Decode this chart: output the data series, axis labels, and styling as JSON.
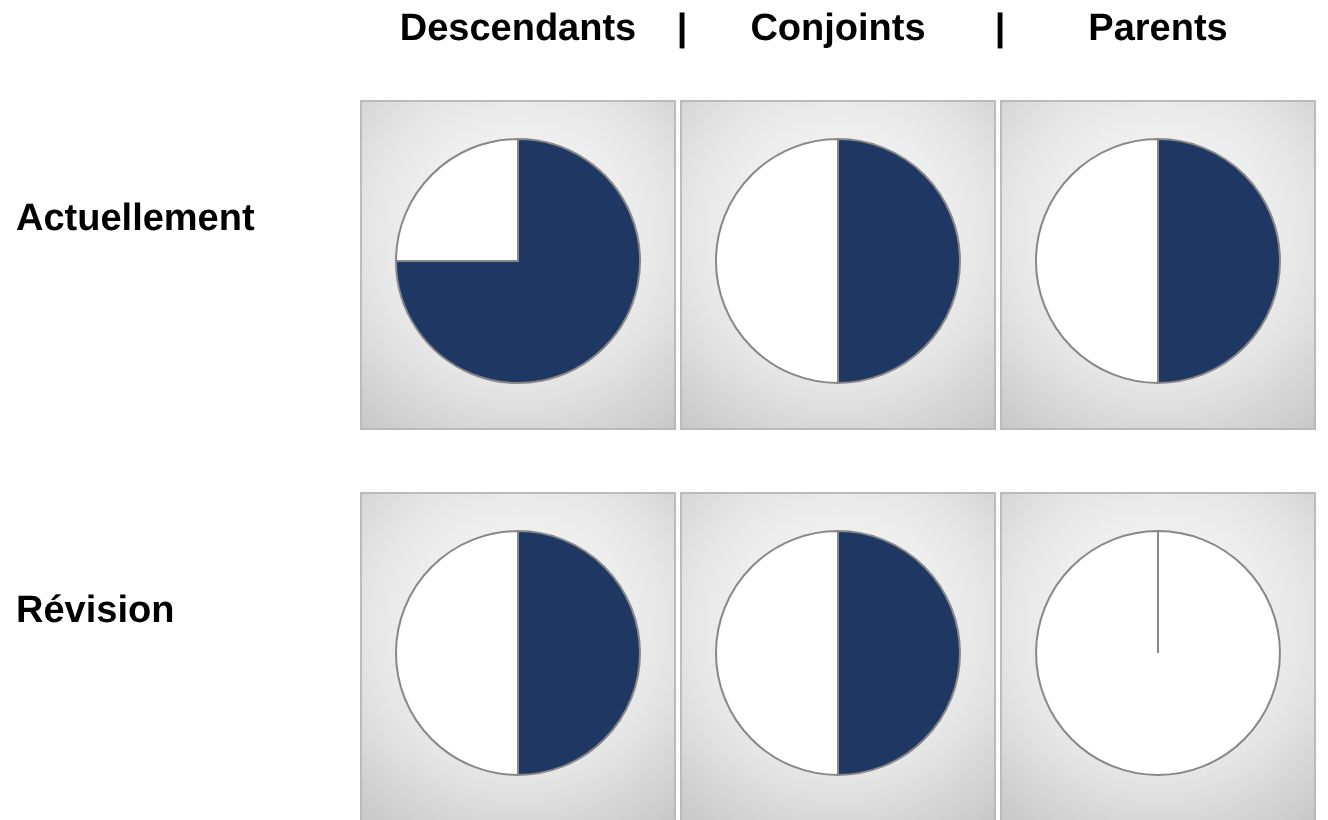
{
  "chart_data": [
    {
      "type": "pie",
      "title": "Descendants",
      "ylabel": "Actuellement",
      "categories": [
        null,
        null
      ],
      "values": [
        75,
        25
      ],
      "colors": [
        "#1f3763",
        "#ffffff"
      ]
    },
    {
      "type": "pie",
      "title": "Conjoints",
      "annotations": [
        "|",
        "|"
      ],
      "categories": [
        null,
        null
      ],
      "values": [
        50,
        50
      ],
      "colors": [
        "#1f3763",
        "#ffffff"
      ]
    },
    {
      "type": "pie",
      "title": "Parents",
      "categories": [
        null,
        null
      ],
      "values": [
        50,
        50
      ],
      "colors": [
        "#1f3763",
        "#ffffff"
      ]
    },
    {
      "type": "pie",
      "ylabel": "Révision",
      "categories": [
        null,
        null
      ],
      "values": [
        50,
        50
      ],
      "colors": [
        "#1f3763",
        "#ffffff"
      ]
    },
    {
      "type": "pie",
      "categories": [
        null,
        null
      ],
      "values": [
        50,
        50
      ],
      "colors": [
        "#1f3763",
        "#ffffff"
      ]
    },
    {
      "type": "pie",
      "categories": [
        null,
        null
      ],
      "values": [
        0,
        100
      ],
      "colors": [
        "#1f3763",
        "#ffffff"
      ]
    }
  ]
}
